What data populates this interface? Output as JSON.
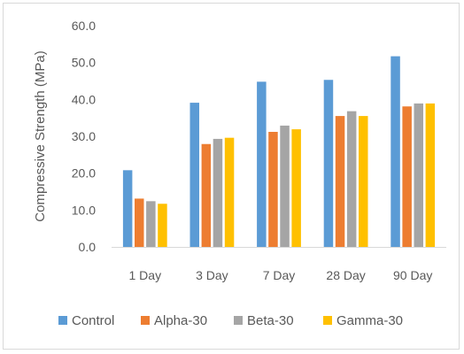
{
  "chart_data": {
    "type": "bar",
    "title": "",
    "xlabel": "",
    "ylabel": "Compressive Strength (MPa)",
    "ylim": [
      0,
      60
    ],
    "ytick_step": 10,
    "ytick_labels": [
      "0.0",
      "10.0",
      "20.0",
      "30.0",
      "40.0",
      "50.0",
      "60.0"
    ],
    "grid": false,
    "legend_position": "bottom",
    "categories": [
      "1 Day",
      "3 Day",
      "7 Day",
      "28 Day",
      "90 Day"
    ],
    "series": [
      {
        "name": "Control",
        "color": "#5b9bd5",
        "values": [
          20.8,
          39.1,
          44.8,
          45.3,
          51.7
        ]
      },
      {
        "name": "Alpha-30",
        "color": "#ed7d31",
        "values": [
          13.1,
          27.9,
          31.2,
          35.5,
          38.1
        ]
      },
      {
        "name": "Beta-30",
        "color": "#a5a5a5",
        "values": [
          12.4,
          29.3,
          32.9,
          36.8,
          38.9
        ]
      },
      {
        "name": "Gamma-30",
        "color": "#ffc000",
        "values": [
          11.7,
          29.6,
          31.9,
          35.5,
          38.9
        ]
      }
    ]
  }
}
